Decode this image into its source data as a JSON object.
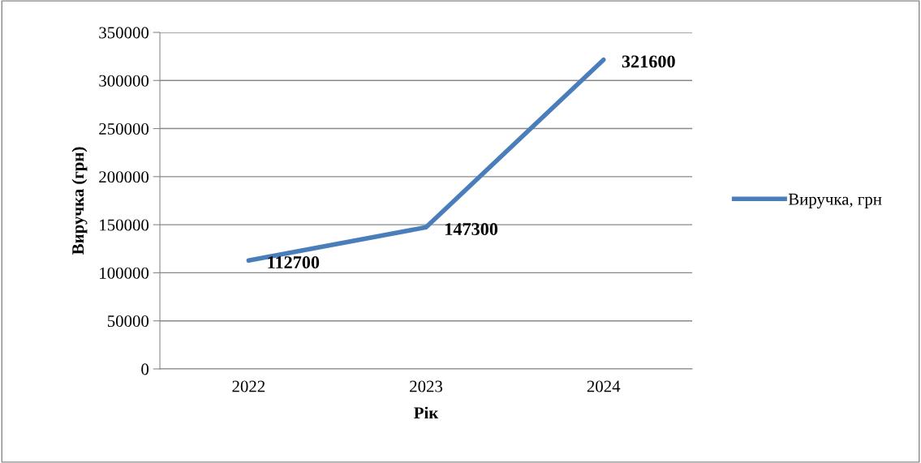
{
  "chart_data": {
    "type": "line",
    "xlabel": "Рік",
    "ylabel": "Виручка (грн)",
    "categories": [
      "2022",
      "2023",
      "2024"
    ],
    "series": [
      {
        "name": "Виручка, грн",
        "color": "#4a7ebb",
        "values": [
          112700,
          147300,
          321600
        ]
      }
    ],
    "ylim": [
      0,
      350000
    ],
    "yticks": [
      0,
      50000,
      100000,
      150000,
      200000,
      250000,
      300000,
      350000
    ],
    "grid": "y",
    "legend": "right",
    "data_labels": true,
    "marker": "none",
    "line_style": "solid"
  }
}
